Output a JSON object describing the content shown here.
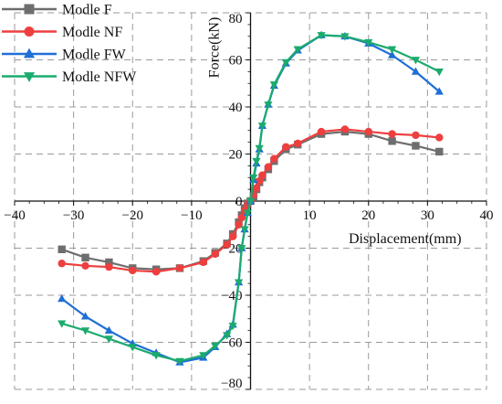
{
  "chart_data": {
    "type": "line",
    "title": "",
    "xlabel": "Displacement(mm)",
    "ylabel": "Force(kN)",
    "xlim": [
      -40,
      40
    ],
    "ylim": [
      -80,
      80
    ],
    "x_ticks": [
      -40,
      -30,
      -20,
      -10,
      0,
      10,
      20,
      30,
      40
    ],
    "y_ticks": [
      -80,
      -60,
      -40,
      -20,
      0,
      20,
      40,
      60,
      80
    ],
    "x_tick_labels": [
      "−40",
      "−30",
      "−20",
      "−10",
      "0",
      "10",
      "20",
      "30",
      "40"
    ],
    "y_tick_labels": [
      "−80",
      "−60",
      "−40",
      "−20",
      "0",
      "20",
      "40",
      "60",
      "80"
    ],
    "grid": true,
    "legend_position": "top-left",
    "series": [
      {
        "name": "Modle F",
        "color": "#6e6e6e",
        "marker": "square",
        "points": [
          [
            -32,
            -20.5
          ],
          [
            -28,
            -24
          ],
          [
            -24,
            -26
          ],
          [
            -20,
            -28.5
          ],
          [
            -16,
            -29
          ],
          [
            -12,
            -28.5
          ],
          [
            -8,
            -25.5
          ],
          [
            -6,
            -22
          ],
          [
            -4,
            -18
          ],
          [
            -3,
            -14
          ],
          [
            -2,
            -9
          ],
          [
            -1.5,
            -6
          ],
          [
            -1,
            -3
          ],
          [
            -0.5,
            -1
          ],
          [
            0,
            0
          ],
          [
            0.5,
            2
          ],
          [
            1,
            5
          ],
          [
            1.5,
            8
          ],
          [
            2,
            10
          ],
          [
            3,
            13.5
          ],
          [
            4,
            17
          ],
          [
            6,
            22
          ],
          [
            8,
            24
          ],
          [
            12,
            28.5
          ],
          [
            16,
            29.5
          ],
          [
            20,
            28.5
          ],
          [
            24,
            25.5
          ],
          [
            28,
            23.5
          ],
          [
            32,
            21
          ]
        ]
      },
      {
        "name": "Modle NF",
        "color": "#ee3f3f",
        "marker": "circle",
        "points": [
          [
            -32,
            -26.5
          ],
          [
            -28,
            -27.5
          ],
          [
            -24,
            -28
          ],
          [
            -20,
            -29.5
          ],
          [
            -16,
            -30
          ],
          [
            -12,
            -28.5
          ],
          [
            -8,
            -26
          ],
          [
            -6,
            -22.5
          ],
          [
            -4,
            -18.5
          ],
          [
            -3,
            -15
          ],
          [
            -2,
            -10
          ],
          [
            -1.5,
            -7
          ],
          [
            -1,
            -4
          ],
          [
            -0.5,
            -1.5
          ],
          [
            0,
            0
          ],
          [
            0.5,
            2.5
          ],
          [
            1,
            5.5
          ],
          [
            1.5,
            8.5
          ],
          [
            2,
            11
          ],
          [
            3,
            14.5
          ],
          [
            4,
            18
          ],
          [
            6,
            23
          ],
          [
            8,
            24.5
          ],
          [
            12,
            29.5
          ],
          [
            16,
            30.5
          ],
          [
            20,
            29.5
          ],
          [
            24,
            28.5
          ],
          [
            28,
            28
          ],
          [
            32,
            27
          ]
        ]
      },
      {
        "name": "Modle FW",
        "color": "#1f6fd6",
        "marker": "triangle-up",
        "points": [
          [
            -32,
            -41.5
          ],
          [
            -28,
            -49
          ],
          [
            -24,
            -55
          ],
          [
            -20,
            -60.5
          ],
          [
            -16,
            -64.5
          ],
          [
            -12,
            -68.5
          ],
          [
            -8,
            -66.5
          ],
          [
            -6,
            -62
          ],
          [
            -4,
            -56.5
          ],
          [
            -3,
            -52.5
          ],
          [
            -2,
            -34.5
          ],
          [
            -1.5,
            -20
          ],
          [
            -1,
            -12
          ],
          [
            -0.5,
            -5
          ],
          [
            0,
            0
          ],
          [
            0.5,
            9
          ],
          [
            1,
            16
          ],
          [
            1.5,
            22
          ],
          [
            2,
            32
          ],
          [
            3,
            41
          ],
          [
            4,
            49
          ],
          [
            6,
            58.5
          ],
          [
            8,
            64
          ],
          [
            12,
            70.5
          ],
          [
            16,
            70
          ],
          [
            20,
            67
          ],
          [
            24,
            62
          ],
          [
            28,
            55
          ],
          [
            32,
            46.5
          ]
        ]
      },
      {
        "name": "Modle NFW",
        "color": "#1aab6d",
        "marker": "triangle-down",
        "points": [
          [
            -32,
            -52
          ],
          [
            -28,
            -55
          ],
          [
            -24,
            -58.5
          ],
          [
            -20,
            -62
          ],
          [
            -16,
            -65.5
          ],
          [
            -12,
            -68
          ],
          [
            -8,
            -65.5
          ],
          [
            -6,
            -61.5
          ],
          [
            -4,
            -57
          ],
          [
            -3,
            -53
          ],
          [
            -2,
            -34.5
          ],
          [
            -1.5,
            -20
          ],
          [
            -1,
            -12
          ],
          [
            -0.5,
            -5
          ],
          [
            0,
            0
          ],
          [
            0.5,
            10
          ],
          [
            1,
            17
          ],
          [
            1.5,
            22.5
          ],
          [
            2,
            32
          ],
          [
            3,
            41
          ],
          [
            4,
            49.5
          ],
          [
            6,
            59
          ],
          [
            8,
            64.5
          ],
          [
            12,
            70.5
          ],
          [
            16,
            70
          ],
          [
            20,
            67.5
          ],
          [
            24,
            64.5
          ],
          [
            28,
            60
          ],
          [
            32,
            55
          ]
        ]
      }
    ]
  }
}
